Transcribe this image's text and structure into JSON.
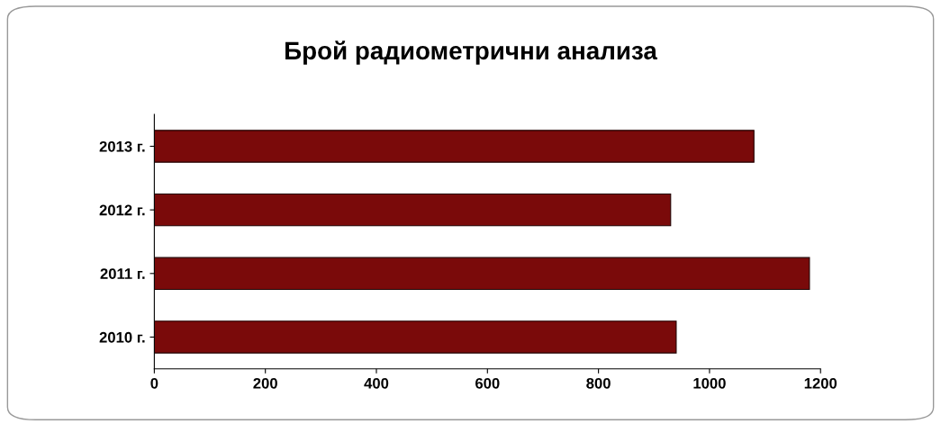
{
  "chart_data": {
    "type": "bar",
    "orientation": "horizontal",
    "title": "Брой радиометрични анализа",
    "categories": [
      "2013 г.",
      "2012 г.",
      "2011 г.",
      "2010 г."
    ],
    "values": [
      1080,
      930,
      1180,
      940
    ],
    "color": "#7a0a0a",
    "xlim": [
      0,
      1200
    ],
    "xticks": [
      0,
      200,
      400,
      600,
      800,
      1000,
      1200
    ],
    "grid": false
  }
}
